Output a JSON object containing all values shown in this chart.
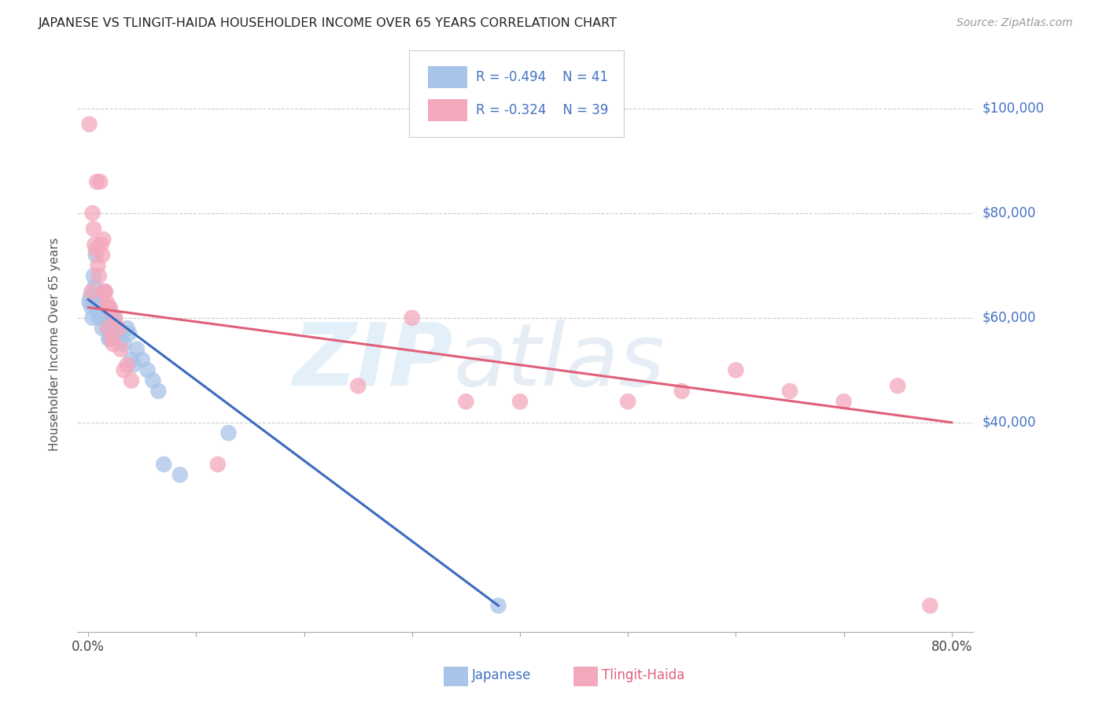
{
  "title": "JAPANESE VS TLINGIT-HAIDA HOUSEHOLDER INCOME OVER 65 YEARS CORRELATION CHART",
  "source": "Source: ZipAtlas.com",
  "ylabel": "Householder Income Over 65 years",
  "ytick_labels": [
    "$40,000",
    "$60,000",
    "$80,000",
    "$100,000"
  ],
  "ytick_values": [
    40000,
    60000,
    80000,
    100000
  ],
  "japanese_color": "#a8c4e8",
  "tlingit_color": "#f4a8bc",
  "japanese_line_color": "#3a6abf",
  "tlingit_line_color": "#e0607a",
  "japanese_scatter": [
    [
      0.001,
      63000
    ],
    [
      0.002,
      64000
    ],
    [
      0.003,
      62000
    ],
    [
      0.004,
      60000
    ],
    [
      0.005,
      68000
    ],
    [
      0.006,
      66000
    ],
    [
      0.007,
      72000
    ],
    [
      0.008,
      64000
    ],
    [
      0.009,
      62000
    ],
    [
      0.01,
      60000
    ],
    [
      0.011,
      63000
    ],
    [
      0.012,
      61000
    ],
    [
      0.013,
      58000
    ],
    [
      0.014,
      62000
    ],
    [
      0.015,
      65000
    ],
    [
      0.016,
      60000
    ],
    [
      0.017,
      62000
    ],
    [
      0.018,
      58000
    ],
    [
      0.019,
      56000
    ],
    [
      0.02,
      56000
    ],
    [
      0.021,
      61000
    ],
    [
      0.022,
      59000
    ],
    [
      0.023,
      57000
    ],
    [
      0.024,
      60000
    ],
    [
      0.025,
      58000
    ],
    [
      0.027,
      57000
    ],
    [
      0.03,
      56000
    ],
    [
      0.033,
      55000
    ],
    [
      0.036,
      58000
    ],
    [
      0.038,
      57000
    ],
    [
      0.04,
      52000
    ],
    [
      0.042,
      51000
    ],
    [
      0.045,
      54000
    ],
    [
      0.05,
      52000
    ],
    [
      0.055,
      50000
    ],
    [
      0.06,
      48000
    ],
    [
      0.065,
      46000
    ],
    [
      0.07,
      32000
    ],
    [
      0.085,
      30000
    ],
    [
      0.13,
      38000
    ],
    [
      0.38,
      5000
    ]
  ],
  "tlingit_scatter": [
    [
      0.001,
      97000
    ],
    [
      0.003,
      65000
    ],
    [
      0.004,
      80000
    ],
    [
      0.005,
      77000
    ],
    [
      0.006,
      74000
    ],
    [
      0.007,
      73000
    ],
    [
      0.008,
      86000
    ],
    [
      0.009,
      70000
    ],
    [
      0.01,
      68000
    ],
    [
      0.011,
      86000
    ],
    [
      0.012,
      74000
    ],
    [
      0.013,
      72000
    ],
    [
      0.014,
      75000
    ],
    [
      0.015,
      65000
    ],
    [
      0.016,
      65000
    ],
    [
      0.017,
      63000
    ],
    [
      0.018,
      58000
    ],
    [
      0.019,
      62000
    ],
    [
      0.02,
      62000
    ],
    [
      0.022,
      56000
    ],
    [
      0.023,
      55000
    ],
    [
      0.025,
      60000
    ],
    [
      0.028,
      58000
    ],
    [
      0.03,
      54000
    ],
    [
      0.033,
      50000
    ],
    [
      0.036,
      51000
    ],
    [
      0.04,
      48000
    ],
    [
      0.3,
      60000
    ],
    [
      0.35,
      44000
    ],
    [
      0.4,
      44000
    ],
    [
      0.5,
      44000
    ],
    [
      0.55,
      46000
    ],
    [
      0.6,
      50000
    ],
    [
      0.65,
      46000
    ],
    [
      0.7,
      44000
    ],
    [
      0.75,
      47000
    ],
    [
      0.78,
      5000
    ],
    [
      0.12,
      32000
    ],
    [
      0.25,
      47000
    ]
  ],
  "xlim": [
    -0.01,
    0.82
  ],
  "ylim": [
    0,
    110000
  ],
  "japanese_line_x": [
    0.0,
    0.38
  ],
  "japanese_line_y": [
    63500,
    5000
  ],
  "tlingit_line_x": [
    0.0,
    0.8
  ],
  "tlingit_line_y": [
    62000,
    40000
  ]
}
